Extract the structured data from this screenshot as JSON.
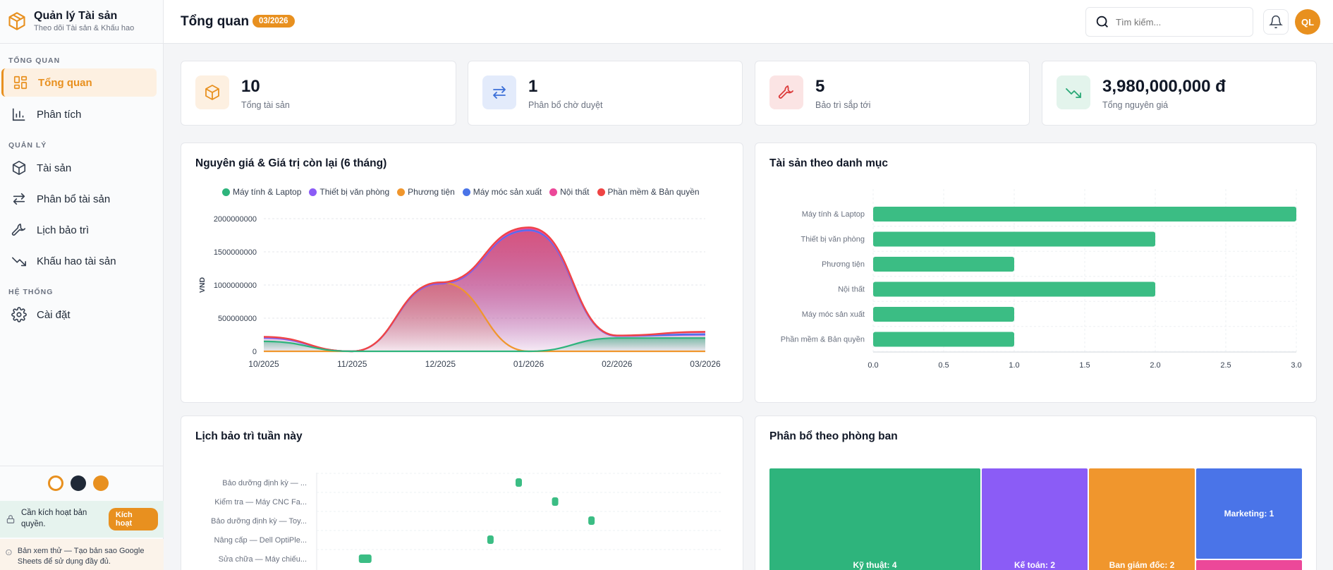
{
  "app": {
    "name": "Quản lý Tài sản",
    "subtitle": "Theo dõi Tài sản & Khấu hao"
  },
  "nav": {
    "sections": {
      "overview": "TỔNG QUAN",
      "manage": "QUẢN LÝ",
      "system": "HỆ THỐNG"
    },
    "items": [
      {
        "label": "Tổng quan",
        "icon": "grid-icon"
      },
      {
        "label": "Phân tích",
        "icon": "chart-icon"
      },
      {
        "label": "Tài sản",
        "icon": "box-icon"
      },
      {
        "label": "Phân bổ tài sản",
        "icon": "transfer-icon"
      },
      {
        "label": "Lịch bảo trì",
        "icon": "wrench-icon"
      },
      {
        "label": "Khấu hao tài sản",
        "icon": "trend-down-icon"
      },
      {
        "label": "Cài đặt",
        "icon": "gear-icon"
      }
    ]
  },
  "theme": {
    "colors": [
      "#ffffff",
      "#1f2937",
      "#e8901f"
    ]
  },
  "license": {
    "text": "Cần kích hoạt bản quyền.",
    "button": "Kích hoạt"
  },
  "trial": {
    "text": "Bản xem thử — Tạo bản sao Google Sheets để sử dụng đầy đủ."
  },
  "header": {
    "title": "Tổng quan",
    "period": "03/2026",
    "search_placeholder": "Tìm kiếm...",
    "avatar": "QL"
  },
  "stats": [
    {
      "value": "10",
      "label": "Tổng tài sản",
      "icon": "box-icon",
      "color": "#e8901f",
      "bg": "#fdf0e1"
    },
    {
      "value": "1",
      "label": "Phân bổ chờ duyệt",
      "icon": "transfer-icon",
      "color": "#3b6fd8",
      "bg": "#e3ebfb"
    },
    {
      "value": "5",
      "label": "Bảo trì sắp tới",
      "icon": "wrench-icon",
      "color": "#dc3b3b",
      "bg": "#fbe4e4"
    },
    {
      "value": "3,980,000,000 đ",
      "label": "Tổng nguyên giá",
      "icon": "trend-down-icon",
      "color": "#2aa876",
      "bg": "#e3f4ec"
    }
  ],
  "colors": {
    "accent": "#e8901f",
    "green": "#2eb47c",
    "purple": "#8b5cf6",
    "orange": "#f0962d",
    "blue": "#4a74e8",
    "pink": "#ec4899",
    "red": "#ef4444"
  },
  "chart_data": [
    {
      "type": "area",
      "title": "Nguyên giá & Giá trị còn lại (6 tháng)",
      "xlabel": "",
      "ylabel": "VND",
      "categories": [
        "10/2025",
        "11/2025",
        "12/2025",
        "01/2026",
        "02/2026",
        "03/2026"
      ],
      "ylim": [
        0,
        2000000000
      ],
      "yticks": [
        0,
        500000000,
        1000000000,
        1500000000,
        2000000000
      ],
      "ytick_labels": [
        "0",
        "500000000",
        "1000000000",
        "1500000000",
        "2000000000"
      ],
      "series": [
        {
          "name": "Máy tính & Laptop",
          "color": "#2eb47c",
          "values": [
            150000000,
            0,
            0,
            0,
            200000000,
            200000000
          ]
        },
        {
          "name": "Thiết bị văn phòng",
          "color": "#8b5cf6",
          "values": [
            200000000,
            0,
            1020000000,
            1820000000,
            230000000,
            250000000
          ]
        },
        {
          "name": "Phương tiện",
          "color": "#f0962d",
          "values": [
            0,
            0,
            1040000000,
            0,
            0,
            0
          ]
        },
        {
          "name": "Máy móc sản xuất",
          "color": "#4a74e8",
          "values": [
            210000000,
            0,
            1030000000,
            1830000000,
            230000000,
            260000000
          ]
        },
        {
          "name": "Nội thất",
          "color": "#ec4899",
          "values": [
            215000000,
            0,
            1035000000,
            1850000000,
            235000000,
            290000000
          ]
        },
        {
          "name": "Phần mềm & Bản quyền",
          "color": "#ef4444",
          "values": [
            220000000,
            0,
            1040000000,
            1870000000,
            240000000,
            295000000
          ]
        }
      ]
    },
    {
      "type": "bar",
      "orientation": "horizontal",
      "title": "Tài sản theo danh mục",
      "categories": [
        "Máy tính & Laptop",
        "Thiết bị văn phòng",
        "Phương tiện",
        "Nội thất",
        "Máy móc sản xuất",
        "Phần mềm & Bản quyền"
      ],
      "values": [
        3,
        2,
        1,
        2,
        1,
        1
      ],
      "xlim": [
        0,
        3
      ],
      "xticks": [
        "0.0",
        "0.5",
        "1.0",
        "1.5",
        "2.0",
        "2.5",
        "3.0"
      ],
      "color": "#3bbd84"
    },
    {
      "type": "scatter",
      "title": "Lịch bảo trì tuần này",
      "categories": [
        "Bảo dưỡng định kỳ — ...",
        "Kiểm tra — Máy CNC Fa...",
        "Bảo dưỡng định kỳ — Toy...",
        "Nâng cấp — Dell OptiPle...",
        "Sửa chữa — Máy chiếu..."
      ],
      "points": [
        {
          "row": 0,
          "x": 0.5
        },
        {
          "row": 1,
          "x": 0.59
        },
        {
          "row": 2,
          "x": 0.68
        },
        {
          "row": 3,
          "x": 0.43
        },
        {
          "row": 4,
          "x": 0.12
        }
      ],
      "color": "#3bbd84"
    },
    {
      "type": "treemap",
      "title": "Phân bổ theo phòng ban",
      "items": [
        {
          "label": "Kỹ thuật: 4",
          "value": 4,
          "color": "#2eb47c"
        },
        {
          "label": "Kế toán: 2",
          "value": 2,
          "color": "#8b5cf6"
        },
        {
          "label": "Ban giám đốc: 2",
          "value": 2,
          "color": "#f0962d"
        },
        {
          "label": "Marketing: 1",
          "value": 1,
          "color": "#4a74e8"
        },
        {
          "label": "",
          "value": 1,
          "color": "#ec4899"
        }
      ]
    }
  ]
}
